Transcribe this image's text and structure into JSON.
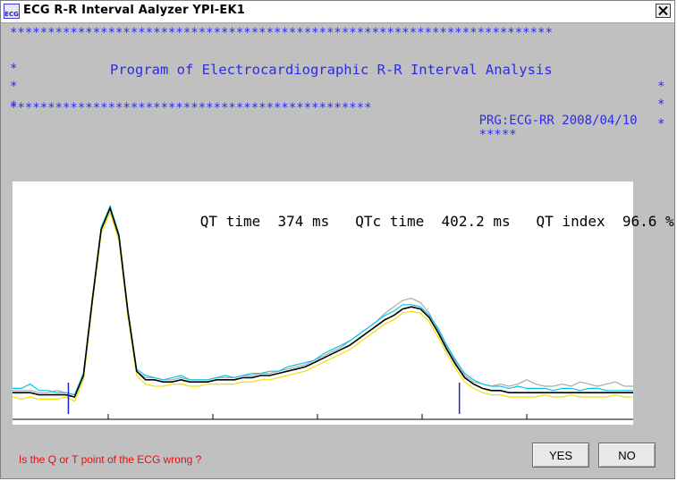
{
  "window": {
    "title": "ECG R-R Interval Aalyzer YPI-EK1",
    "icon_label": "ECG",
    "icon": "ecg-app-icon",
    "close_icon": "close-icon"
  },
  "banner": {
    "star_line": "************************************************************************",
    "side_star": "*",
    "heading": "Program of Electrocardiographic R-R Interval Analysis",
    "bottom_stars_left": "************************************************",
    "prg_info": "PRG:ECG-RR 2008/04/10",
    "bottom_stars_right": "*****"
  },
  "readout": {
    "qt_label": "QT time",
    "qt_value": "374",
    "qt_unit": "ms",
    "qtc_label": "QTc time",
    "qtc_value": "402.2",
    "qtc_unit": "ms",
    "qti_label": "QT index",
    "qti_value": "96.6",
    "qti_unit": "%"
  },
  "chart_data": {
    "type": "line",
    "title": "",
    "xlabel": "",
    "ylabel": "",
    "grid": false,
    "markers": {
      "q_point_sample": 0.09,
      "t_point_sample": 0.72
    },
    "series": [
      {
        "color": "#000000",
        "y": [
          0.12,
          0.12,
          0.12,
          0.11,
          0.11,
          0.11,
          0.11,
          0.1,
          0.2,
          0.55,
          0.88,
          0.98,
          0.85,
          0.5,
          0.22,
          0.18,
          0.18,
          0.17,
          0.17,
          0.18,
          0.17,
          0.17,
          0.17,
          0.18,
          0.18,
          0.18,
          0.19,
          0.19,
          0.2,
          0.2,
          0.21,
          0.22,
          0.23,
          0.24,
          0.26,
          0.28,
          0.3,
          0.32,
          0.34,
          0.37,
          0.4,
          0.43,
          0.46,
          0.48,
          0.51,
          0.52,
          0.51,
          0.47,
          0.4,
          0.32,
          0.25,
          0.19,
          0.16,
          0.14,
          0.13,
          0.13,
          0.12,
          0.12,
          0.12,
          0.12,
          0.12,
          0.12,
          0.12,
          0.12,
          0.12,
          0.12,
          0.12,
          0.12,
          0.12,
          0.12,
          0.12
        ]
      },
      {
        "color": "#00c8e8",
        "y": [
          0.14,
          0.14,
          0.16,
          0.13,
          0.13,
          0.12,
          0.12,
          0.11,
          0.21,
          0.56,
          0.89,
          0.99,
          0.86,
          0.51,
          0.23,
          0.2,
          0.19,
          0.18,
          0.19,
          0.2,
          0.18,
          0.18,
          0.18,
          0.19,
          0.2,
          0.19,
          0.2,
          0.21,
          0.21,
          0.22,
          0.22,
          0.24,
          0.25,
          0.26,
          0.27,
          0.3,
          0.32,
          0.34,
          0.36,
          0.39,
          0.42,
          0.45,
          0.48,
          0.5,
          0.53,
          0.53,
          0.52,
          0.48,
          0.42,
          0.34,
          0.27,
          0.21,
          0.18,
          0.16,
          0.15,
          0.15,
          0.14,
          0.15,
          0.14,
          0.14,
          0.14,
          0.13,
          0.14,
          0.14,
          0.13,
          0.14,
          0.14,
          0.13,
          0.13,
          0.13,
          0.13
        ]
      },
      {
        "color": "#f0e000",
        "y": [
          0.1,
          0.09,
          0.1,
          0.09,
          0.09,
          0.09,
          0.1,
          0.08,
          0.18,
          0.53,
          0.86,
          0.96,
          0.83,
          0.48,
          0.2,
          0.16,
          0.15,
          0.15,
          0.16,
          0.16,
          0.15,
          0.15,
          0.16,
          0.16,
          0.16,
          0.16,
          0.17,
          0.17,
          0.18,
          0.18,
          0.19,
          0.2,
          0.21,
          0.22,
          0.24,
          0.26,
          0.28,
          0.3,
          0.32,
          0.35,
          0.38,
          0.41,
          0.44,
          0.46,
          0.49,
          0.5,
          0.49,
          0.45,
          0.38,
          0.3,
          0.23,
          0.17,
          0.14,
          0.12,
          0.11,
          0.11,
          0.1,
          0.1,
          0.1,
          0.1,
          0.11,
          0.1,
          0.1,
          0.11,
          0.1,
          0.1,
          0.1,
          0.1,
          0.11,
          0.1,
          0.1
        ]
      },
      {
        "color": "#a8a8a8",
        "y": [
          0.13,
          0.13,
          0.13,
          0.12,
          0.12,
          0.13,
          0.12,
          0.11,
          0.21,
          0.55,
          0.88,
          0.98,
          0.85,
          0.5,
          0.22,
          0.19,
          0.19,
          0.18,
          0.18,
          0.19,
          0.18,
          0.18,
          0.18,
          0.19,
          0.19,
          0.19,
          0.2,
          0.2,
          0.21,
          0.21,
          0.22,
          0.23,
          0.24,
          0.25,
          0.27,
          0.29,
          0.31,
          0.33,
          0.36,
          0.39,
          0.42,
          0.45,
          0.49,
          0.52,
          0.55,
          0.56,
          0.54,
          0.49,
          0.41,
          0.33,
          0.26,
          0.2,
          0.17,
          0.16,
          0.15,
          0.16,
          0.15,
          0.16,
          0.18,
          0.16,
          0.15,
          0.15,
          0.16,
          0.15,
          0.17,
          0.16,
          0.15,
          0.16,
          0.17,
          0.15,
          0.15
        ]
      }
    ]
  },
  "prompt": {
    "text": "Is the Q or T point of the ECG wrong ?"
  },
  "buttons": {
    "yes": "YES",
    "no": "NO"
  }
}
